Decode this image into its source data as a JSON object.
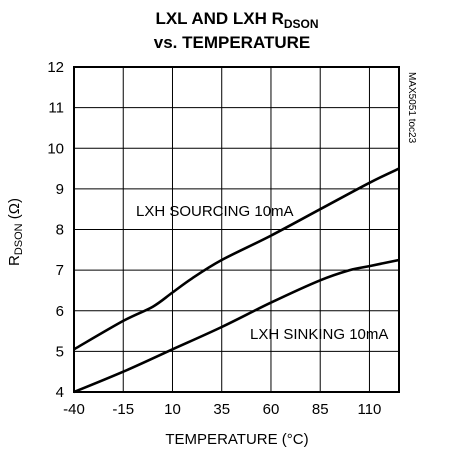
{
  "chart_data": {
    "type": "line",
    "title_line1": "LXL AND LXH R",
    "title_sub": "DSON",
    "title_line2": "vs. TEMPERATURE",
    "xlabel": "TEMPERATURE (°C)",
    "ylabel_main": "R",
    "ylabel_sub": "DSON",
    "ylabel_unit": " (Ω)",
    "xlim": [
      -40,
      125
    ],
    "ylim": [
      4,
      12
    ],
    "x_ticks": [
      -40,
      -15,
      10,
      35,
      60,
      85,
      110
    ],
    "y_ticks": [
      4,
      5,
      6,
      7,
      8,
      9,
      10,
      11,
      12
    ],
    "grid": true,
    "figure_code": "MAX5051 toc23",
    "series": [
      {
        "name": "LXH SOURCING 10mA",
        "x": [
          -40,
          -15,
          0,
          10,
          20,
          35,
          60,
          85,
          110,
          125
        ],
        "y": [
          5.05,
          5.75,
          6.1,
          6.45,
          6.8,
          7.25,
          7.85,
          8.5,
          9.15,
          9.5
        ]
      },
      {
        "name": "LXH SINKING 10mA",
        "x": [
          -40,
          -15,
          10,
          35,
          60,
          85,
          100,
          110,
          125
        ],
        "y": [
          4.0,
          4.5,
          5.05,
          5.6,
          6.2,
          6.75,
          7.0,
          7.1,
          7.25
        ]
      }
    ]
  }
}
